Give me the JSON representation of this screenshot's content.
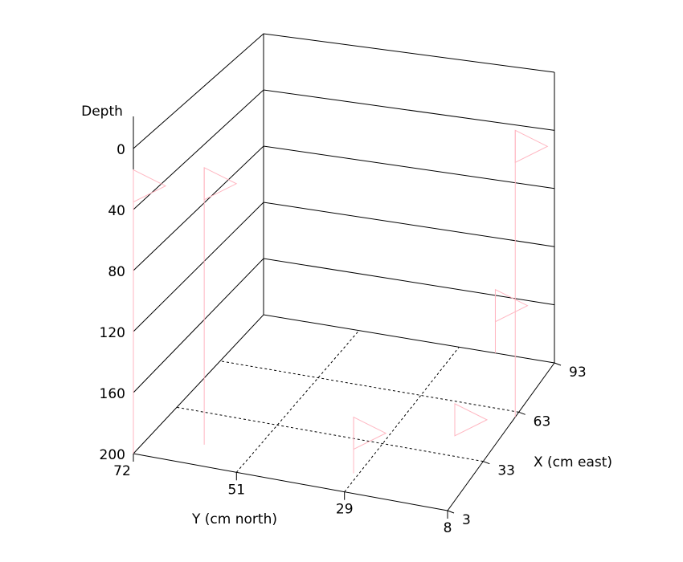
{
  "chart_data": {
    "type": "scatter3d",
    "z_label": "Depth",
    "x_label": "X (cm east)",
    "y_label": "Y (cm north)",
    "xlim": [
      3,
      93
    ],
    "xticks": [
      3,
      33,
      63,
      93
    ],
    "ylim": [
      72,
      8
    ],
    "yticks": [
      72,
      51,
      29,
      8
    ],
    "zlim": [
      0,
      200
    ],
    "zticks": [
      0,
      40,
      80,
      120,
      160,
      200
    ],
    "color": "#ffb6c1",
    "x": [
      3,
      15,
      14,
      45,
      60,
      93
    ],
    "y": [
      72,
      61,
      30,
      17,
      8,
      21
    ],
    "z": [
      14,
      18,
      164,
      180,
      10,
      156
    ]
  }
}
